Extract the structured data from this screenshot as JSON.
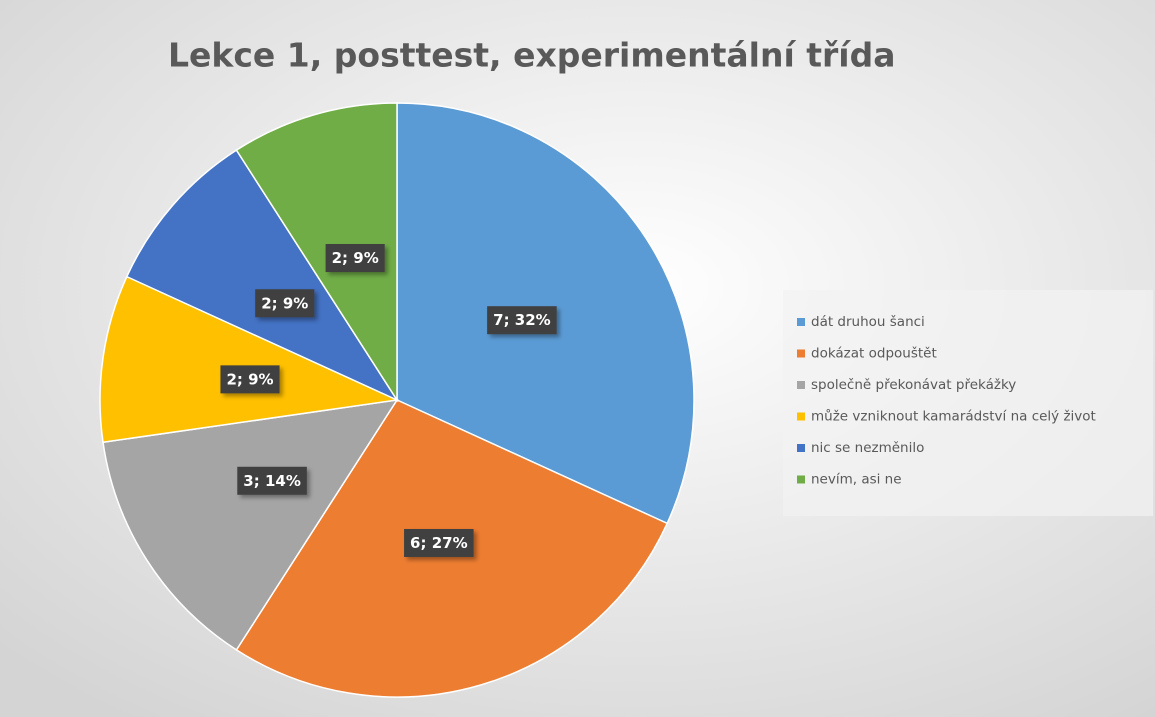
{
  "chart_data": {
    "type": "pie",
    "title": "Lekce 1, posttest, experimentální třída",
    "categories": [
      "dát druhou šanci",
      "dokázat odpouštět",
      "společně překonávat překážky",
      "může vzniknout kamarádství na celý život",
      "nic se nezměnilo",
      "nevím, asi ne"
    ],
    "values": [
      7,
      6,
      3,
      2,
      2,
      2
    ],
    "value_labels": [
      "7; 32%",
      "6; 27%",
      "3; 14%",
      "2; 9%",
      "2; 9%",
      "2; 9%"
    ],
    "colors": [
      "#5b9bd5",
      "#ed7d31",
      "#a5a5a5",
      "#ffc000",
      "#4472c4",
      "#70ad47"
    ],
    "legend": "right"
  }
}
